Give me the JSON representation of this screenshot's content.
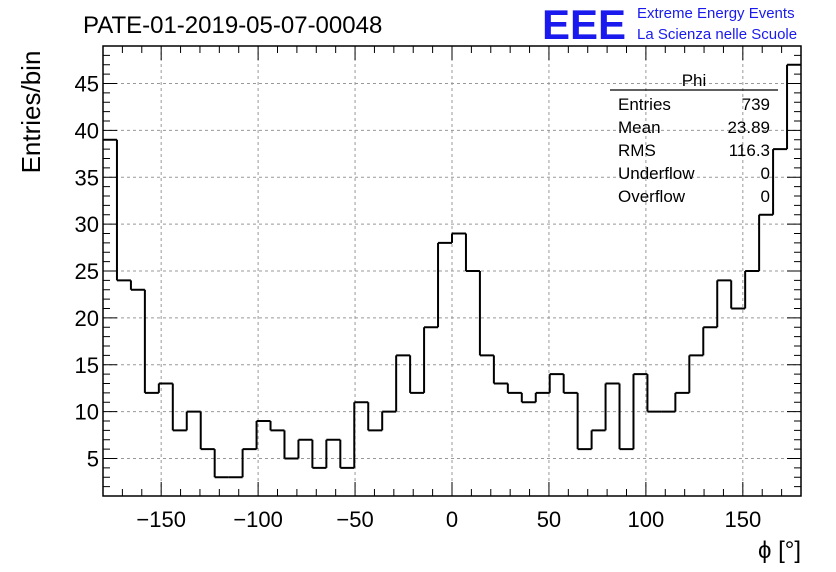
{
  "chart_data": {
    "type": "bar",
    "title": "PATE-01-2019-05-07-00048",
    "xlabel": "ϕ [°]",
    "ylabel": "Entries/bin",
    "xlim": [
      -180,
      180
    ],
    "ylim": [
      1,
      49
    ],
    "bin_width": 7.2,
    "x_ticks": [
      -150,
      -100,
      -50,
      0,
      50,
      100,
      150
    ],
    "y_ticks": [
      5,
      10,
      15,
      20,
      25,
      30,
      35,
      40,
      45
    ],
    "grid": true,
    "values": [
      39,
      24,
      23,
      12,
      13,
      8,
      10,
      6,
      3,
      3,
      6,
      9,
      8,
      5,
      7,
      4,
      7,
      4,
      11,
      8,
      10,
      16,
      12,
      19,
      28,
      29,
      25,
      16,
      13,
      12,
      11,
      12,
      14,
      12,
      6,
      8,
      13,
      6,
      14,
      10,
      10,
      12,
      16,
      19,
      24,
      21,
      25,
      31,
      38,
      47
    ],
    "stats": {
      "title": "Phi",
      "rows": [
        {
          "label": "Entries",
          "value": "739"
        },
        {
          "label": "Mean",
          "value": "23.89"
        },
        {
          "label": "RMS",
          "value": "116.3"
        },
        {
          "label": "Underflow",
          "value": "0"
        },
        {
          "label": "Overflow",
          "value": "0"
        }
      ]
    }
  },
  "branding": {
    "logo": "EEE",
    "line1": "Extreme Energy Events",
    "line2": "La Scienza nelle Scuole",
    "color": "#1a1aee"
  }
}
